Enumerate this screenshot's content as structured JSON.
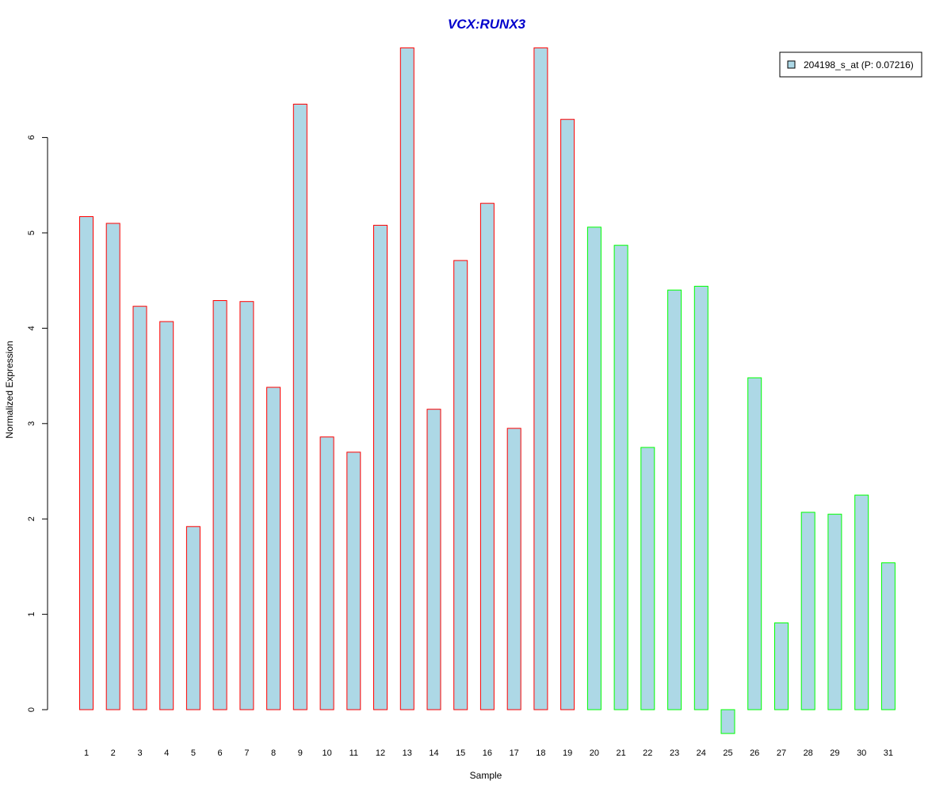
{
  "chart_data": {
    "type": "bar",
    "title": "VCX:RUNX3",
    "xlabel": "Sample",
    "ylabel": "Normalized Expression",
    "ylim": [
      -0.25,
      6.95
    ],
    "yticks": [
      0,
      1,
      2,
      3,
      4,
      5,
      6
    ],
    "grid": false,
    "legend_position": "top-right",
    "colors": {
      "title": "#0000CC",
      "bar_fill": "#ADD8E6",
      "group1_border": "#FF0000",
      "group2_border": "#00FF00"
    },
    "categories": [
      "1",
      "2",
      "3",
      "4",
      "5",
      "6",
      "7",
      "8",
      "9",
      "10",
      "11",
      "12",
      "13",
      "14",
      "15",
      "16",
      "17",
      "18",
      "19",
      "20",
      "21",
      "22",
      "23",
      "24",
      "25",
      "26",
      "27",
      "28",
      "29",
      "30",
      "31"
    ],
    "series": [
      {
        "name": "204198_s_at (P: 0.07216)",
        "values": [
          5.17,
          5.1,
          4.23,
          4.07,
          1.92,
          4.29,
          4.28,
          3.38,
          6.35,
          2.86,
          2.7,
          5.08,
          6.94,
          3.15,
          4.71,
          5.31,
          2.95,
          6.94,
          6.19,
          5.06,
          4.87,
          2.75,
          4.4,
          4.44,
          -0.25,
          3.48,
          0.91,
          2.07,
          2.05,
          2.25,
          1.54
        ]
      }
    ],
    "group_split_after": 19
  }
}
